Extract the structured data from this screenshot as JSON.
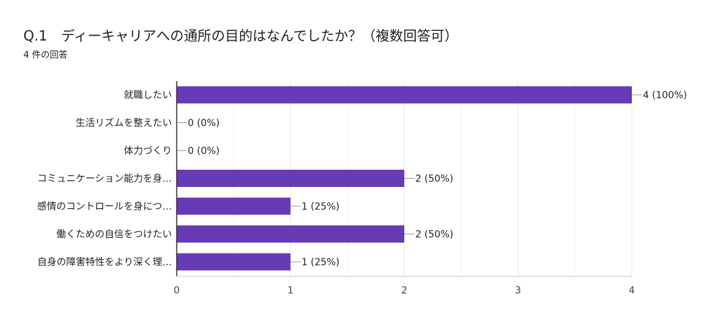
{
  "header": {
    "title": "Q.1　ディーキャリアへの通所の目的はなんでしたか？（複数回答可）",
    "response_count": "4 件の回答"
  },
  "colors": {
    "bar": "#673ab7",
    "grid": "#e6e6e6",
    "axis": "#333333",
    "leader": "#999999"
  },
  "chart_data": {
    "type": "bar",
    "orientation": "horizontal",
    "categories": [
      "就職したい",
      "生活リズムを整えたい",
      "体力づくり",
      "コミュニケーション能力を身…",
      "感情のコントロールを身につ…",
      "働くための自信をつけたい",
      "自身の障害特性をより深く理…"
    ],
    "values": [
      4,
      0,
      0,
      2,
      1,
      2,
      1
    ],
    "value_labels": [
      "4 (100%)",
      "0 (0%)",
      "0 (0%)",
      "2 (50%)",
      "1 (25%)",
      "2 (50%)",
      "1 (25%)"
    ],
    "xlim": [
      0,
      4
    ],
    "xticks": [
      "0",
      "1",
      "2",
      "3",
      "4"
    ],
    "grid": true
  }
}
